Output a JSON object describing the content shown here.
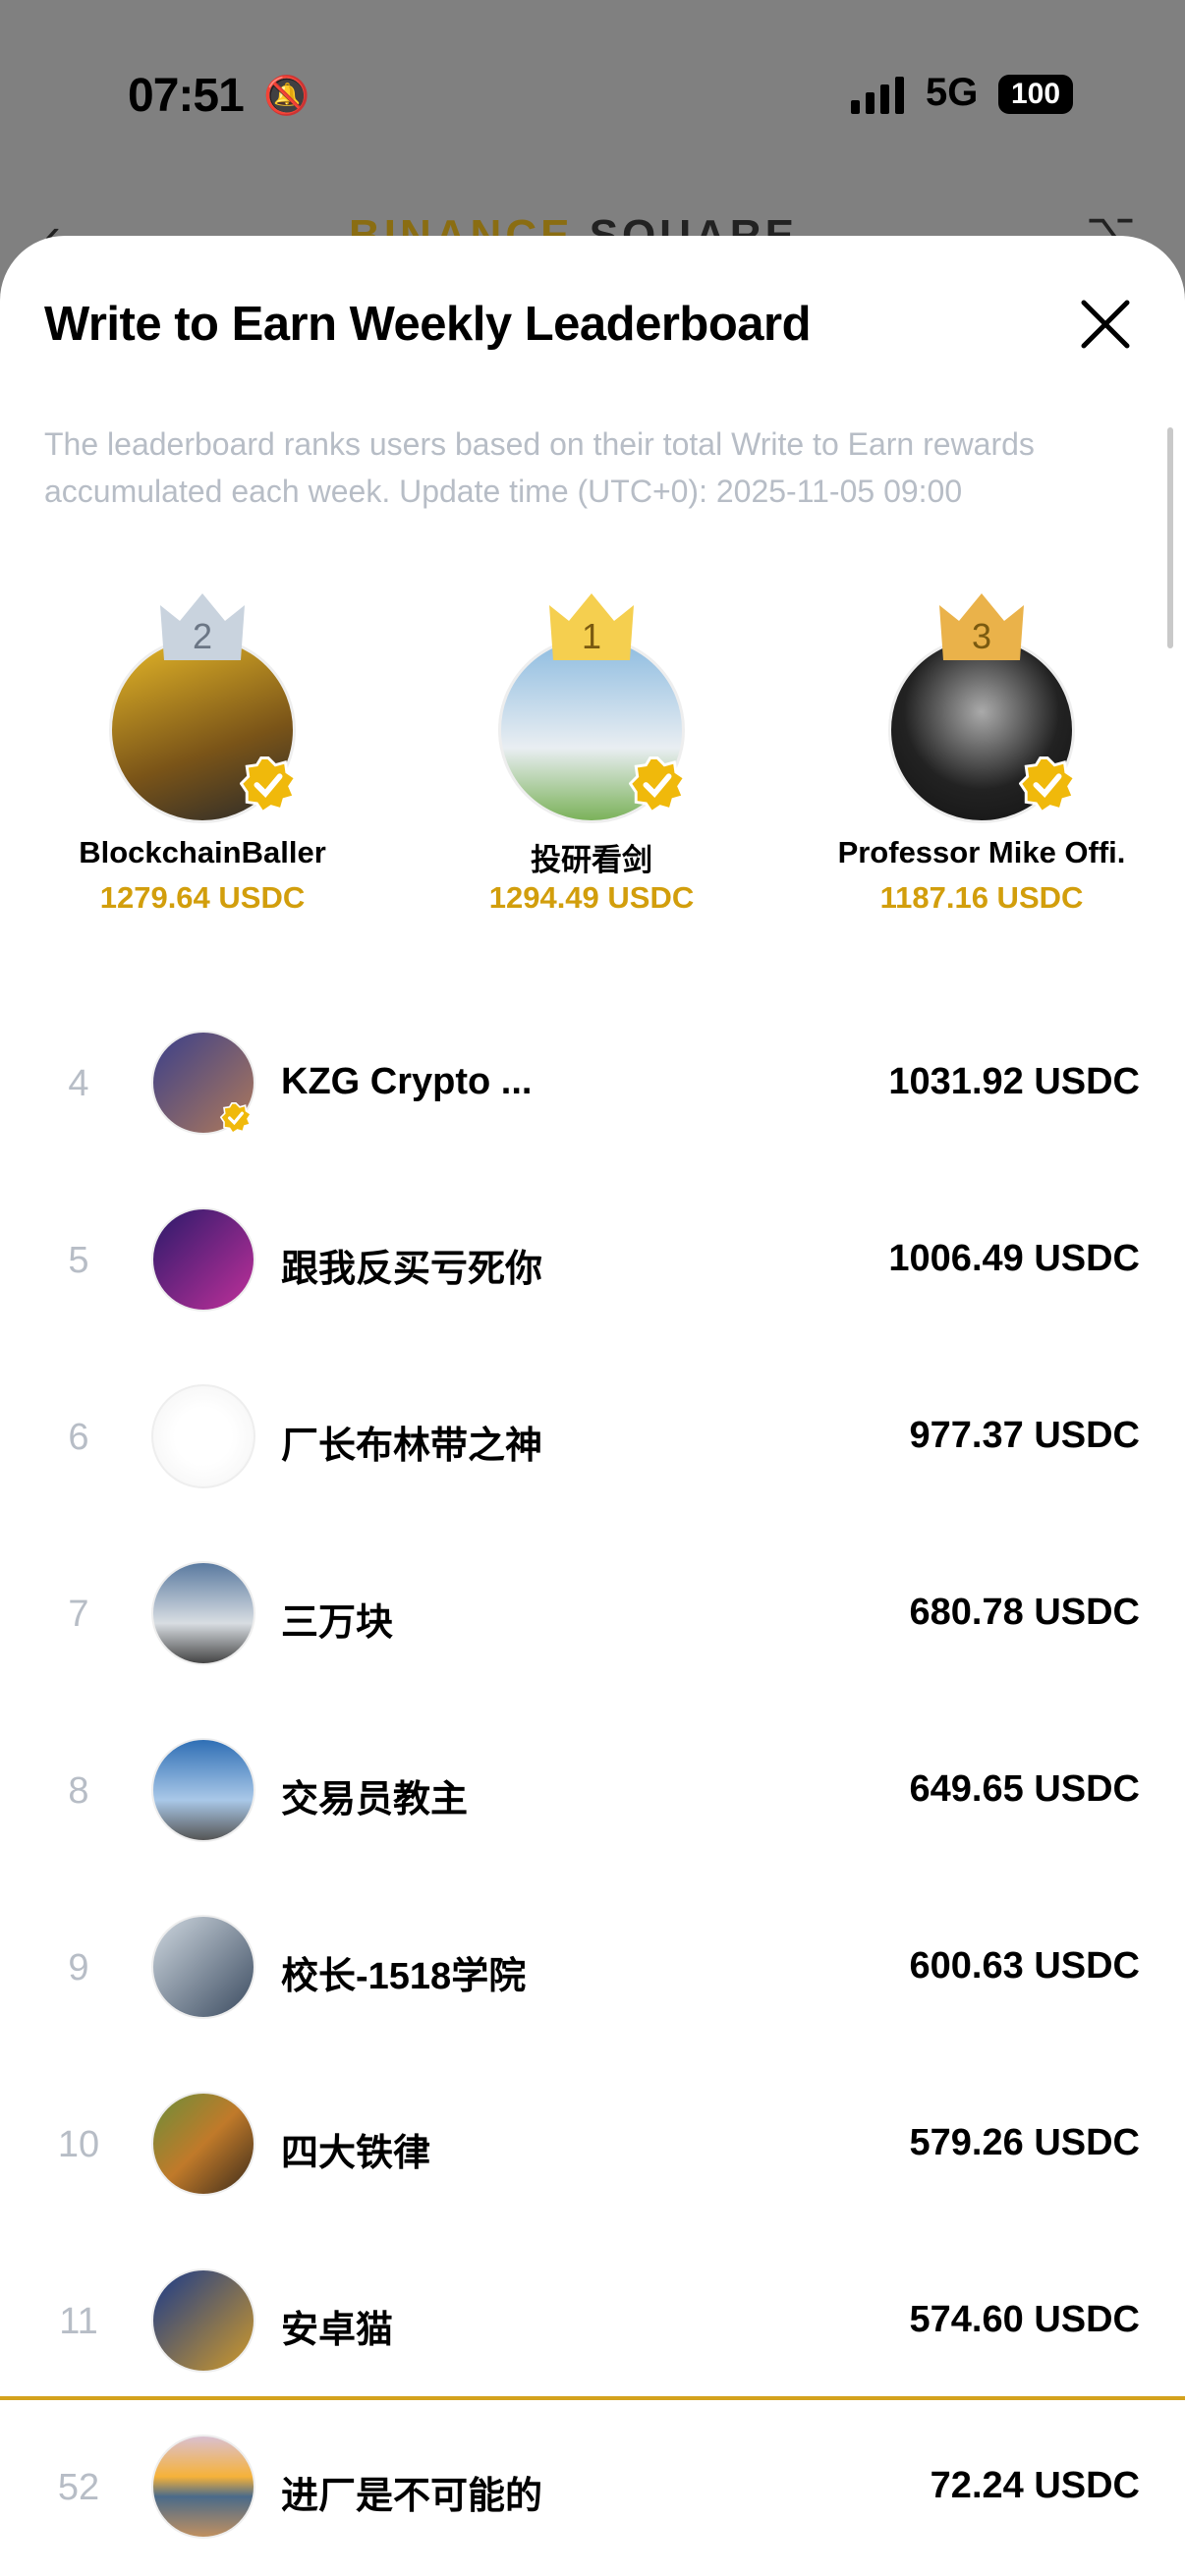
{
  "status_bar": {
    "time": "07:51",
    "network": "5G",
    "battery": "100",
    "icons": [
      "bell-slash-icon",
      "signal-icon",
      "battery-icon"
    ]
  },
  "app_bar": {
    "brand": "BINANCE",
    "brand_suffix": "SQUARE"
  },
  "sheet": {
    "title": "Write to Earn Weekly Leaderboard",
    "description": "The leaderboard ranks users based on their total Write to Earn rewards accumulated each week. Update time (UTC+0): 2025-11-05 09:00"
  },
  "colors": {
    "accent": "#d29e0c",
    "separator": "#d4a21c",
    "muted": "#b7bdc6",
    "gold_crown": "#f5cf4f",
    "silver_crown": "#c9d3de",
    "bronze_crown": "#eab24a"
  },
  "podium": [
    {
      "rank": "2",
      "name": "BlockchainBaller",
      "amount": "1279.64 USDC",
      "verified": true
    },
    {
      "rank": "1",
      "name": "投研看剑",
      "amount": "1294.49 USDC",
      "verified": true
    },
    {
      "rank": "3",
      "name": "Professor Mike Offi.",
      "amount": "1187.16 USDC",
      "verified": true
    }
  ],
  "list": [
    {
      "rank": "4",
      "name": "KZG Crypto ...",
      "amount": "1031.92 USDC",
      "verified": true
    },
    {
      "rank": "5",
      "name": "跟我反买亏死你",
      "amount": "1006.49 USDC",
      "verified": false
    },
    {
      "rank": "6",
      "name": "厂长布林带之神",
      "amount": "977.37 USDC",
      "verified": false
    },
    {
      "rank": "7",
      "name": "三万块",
      "amount": "680.78 USDC",
      "verified": false
    },
    {
      "rank": "8",
      "name": "交易员教主",
      "amount": "649.65 USDC",
      "verified": false
    },
    {
      "rank": "9",
      "name": "校长-1518学院",
      "amount": "600.63 USDC",
      "verified": false
    },
    {
      "rank": "10",
      "name": "四大铁律",
      "amount": "579.26 USDC",
      "verified": false
    },
    {
      "rank": "11",
      "name": "安卓猫",
      "amount": "574.60 USDC",
      "verified": false
    }
  ],
  "me": {
    "rank": "52",
    "name": "进厂是不可能的",
    "amount": "72.24 USDC"
  }
}
